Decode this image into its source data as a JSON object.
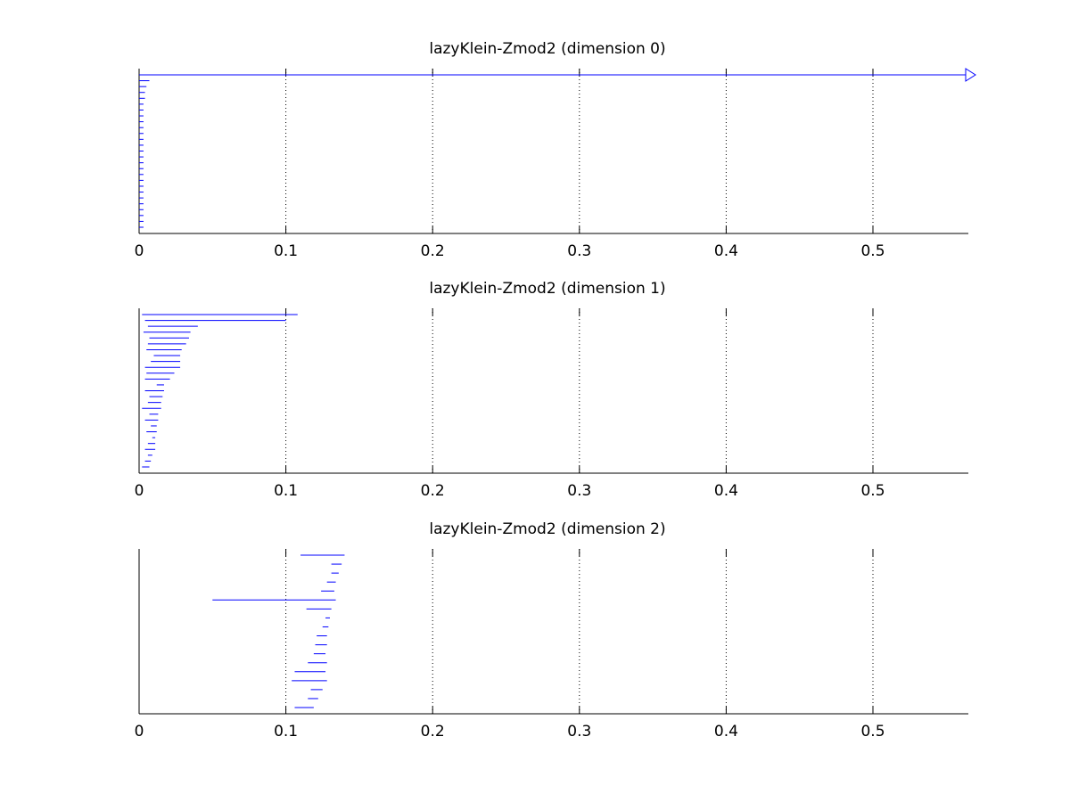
{
  "figure": {
    "background": "#ffffff",
    "bar_color": "#0000ff",
    "axis_color": "#000000",
    "grid_color": "#000000"
  },
  "chart_data": [
    {
      "type": "barcode",
      "title": "lazyKlein-Zmod2 (dimension 0)",
      "xlabel": "",
      "ylabel": "",
      "xlim": [
        0,
        0.565
      ],
      "xticks": [
        0,
        0.1,
        0.2,
        0.3,
        0.4,
        0.5
      ],
      "xtick_labels": [
        "0",
        "0.1",
        "0.2",
        "0.3",
        "0.4",
        "0.5"
      ],
      "grid": "vertical dotted at ticks",
      "infinite_marker": "open triangle arrow at right edge",
      "intervals": [
        {
          "birth": 0,
          "death": null
        },
        {
          "birth": 0,
          "death": 0.007
        },
        {
          "birth": 0,
          "death": 0.005
        },
        {
          "birth": 0,
          "death": 0.004
        },
        {
          "birth": 0,
          "death": 0.004
        },
        {
          "birth": 0,
          "death": 0.003
        },
        {
          "birth": 0,
          "death": 0.003
        },
        {
          "birth": 0,
          "death": 0.003
        },
        {
          "birth": 0,
          "death": 0.003
        },
        {
          "birth": 0,
          "death": 0.003
        },
        {
          "birth": 0,
          "death": 0.003
        },
        {
          "birth": 0,
          "death": 0.003
        },
        {
          "birth": 0,
          "death": 0.003
        },
        {
          "birth": 0,
          "death": 0.003
        },
        {
          "birth": 0,
          "death": 0.003
        },
        {
          "birth": 0,
          "death": 0.003
        },
        {
          "birth": 0,
          "death": 0.003
        },
        {
          "birth": 0,
          "death": 0.003
        },
        {
          "birth": 0,
          "death": 0.003
        },
        {
          "birth": 0,
          "death": 0.003
        },
        {
          "birth": 0,
          "death": 0.003
        },
        {
          "birth": 0,
          "death": 0.003
        },
        {
          "birth": 0,
          "death": 0.003
        },
        {
          "birth": 0,
          "death": 0.003
        },
        {
          "birth": 0,
          "death": 0.003
        },
        {
          "birth": 0,
          "death": 0.003
        },
        {
          "birth": 0,
          "death": 0.003
        }
      ]
    },
    {
      "type": "barcode",
      "title": "lazyKlein-Zmod2 (dimension 1)",
      "xlabel": "",
      "ylabel": "",
      "xlim": [
        0,
        0.565
      ],
      "xticks": [
        0,
        0.1,
        0.2,
        0.3,
        0.4,
        0.5
      ],
      "xtick_labels": [
        "0",
        "0.1",
        "0.2",
        "0.3",
        "0.4",
        "0.5"
      ],
      "grid": "vertical dotted at ticks",
      "intervals": [
        {
          "birth": 0.002,
          "death": 0.108
        },
        {
          "birth": 0.004,
          "death": 0.1
        },
        {
          "birth": 0.006,
          "death": 0.04
        },
        {
          "birth": 0.003,
          "death": 0.035
        },
        {
          "birth": 0.007,
          "death": 0.034
        },
        {
          "birth": 0.006,
          "death": 0.032
        },
        {
          "birth": 0.005,
          "death": 0.029
        },
        {
          "birth": 0.01,
          "death": 0.028
        },
        {
          "birth": 0.008,
          "death": 0.028
        },
        {
          "birth": 0.004,
          "death": 0.028
        },
        {
          "birth": 0.005,
          "death": 0.024
        },
        {
          "birth": 0.004,
          "death": 0.021
        },
        {
          "birth": 0.012,
          "death": 0.017
        },
        {
          "birth": 0.004,
          "death": 0.017
        },
        {
          "birth": 0.007,
          "death": 0.016
        },
        {
          "birth": 0.006,
          "death": 0.015
        },
        {
          "birth": 0.002,
          "death": 0.015
        },
        {
          "birth": 0.007,
          "death": 0.013
        },
        {
          "birth": 0.004,
          "death": 0.013
        },
        {
          "birth": 0.008,
          "death": 0.012
        },
        {
          "birth": 0.005,
          "death": 0.012
        },
        {
          "birth": 0.009,
          "death": 0.011
        },
        {
          "birth": 0.006,
          "death": 0.011
        },
        {
          "birth": 0.004,
          "death": 0.011
        },
        {
          "birth": 0.006,
          "death": 0.009
        },
        {
          "birth": 0.004,
          "death": 0.008
        },
        {
          "birth": 0.002,
          "death": 0.007
        }
      ]
    },
    {
      "type": "barcode",
      "title": "lazyKlein-Zmod2 (dimension 2)",
      "xlabel": "",
      "ylabel": "",
      "xlim": [
        0,
        0.565
      ],
      "xticks": [
        0,
        0.1,
        0.2,
        0.3,
        0.4,
        0.5
      ],
      "xtick_labels": [
        "0",
        "0.1",
        "0.2",
        "0.3",
        "0.4",
        "0.5"
      ],
      "grid": "vertical dotted at ticks",
      "intervals": [
        {
          "birth": 0.11,
          "death": 0.14
        },
        {
          "birth": 0.131,
          "death": 0.138
        },
        {
          "birth": 0.131,
          "death": 0.136
        },
        {
          "birth": 0.128,
          "death": 0.134
        },
        {
          "birth": 0.124,
          "death": 0.133
        },
        {
          "birth": 0.05,
          "death": 0.134
        },
        {
          "birth": 0.114,
          "death": 0.131
        },
        {
          "birth": 0.127,
          "death": 0.13
        },
        {
          "birth": 0.125,
          "death": 0.129
        },
        {
          "birth": 0.121,
          "death": 0.128
        },
        {
          "birth": 0.12,
          "death": 0.128
        },
        {
          "birth": 0.119,
          "death": 0.127
        },
        {
          "birth": 0.115,
          "death": 0.128
        },
        {
          "birth": 0.106,
          "death": 0.127
        },
        {
          "birth": 0.104,
          "death": 0.128
        },
        {
          "birth": 0.117,
          "death": 0.125
        },
        {
          "birth": 0.115,
          "death": 0.122
        },
        {
          "birth": 0.106,
          "death": 0.119
        }
      ]
    }
  ]
}
